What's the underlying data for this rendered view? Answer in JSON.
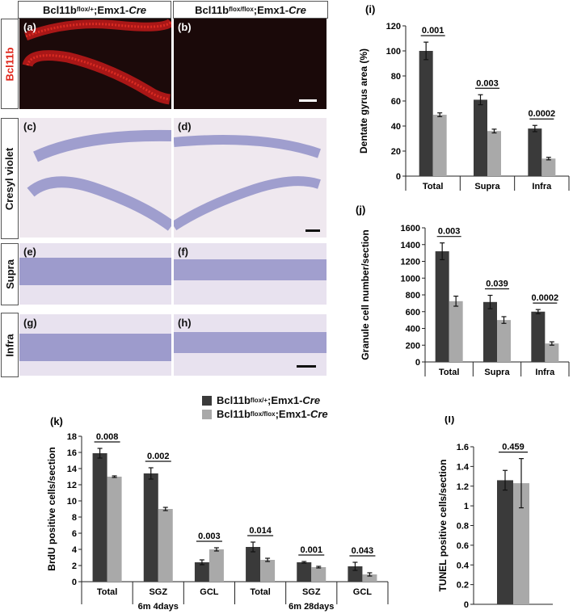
{
  "colors": {
    "dark": "#3a3a3a",
    "light": "#a9a9a9",
    "red_label": "#e0261b"
  },
  "headers": {
    "left": {
      "base": "Bcl11b",
      "sup": "flox/+",
      "mid": ";Emx1-",
      "cre": "Cre"
    },
    "right": {
      "base": "Bcl11b",
      "sup": "flox/flox",
      "mid": ";Emx1-",
      "cre": "Cre"
    }
  },
  "row_labels": [
    "Bcl11b",
    "Cresyl violet",
    "Supra",
    "Infra"
  ],
  "panel_labels": [
    "(a)",
    "(b)",
    "(c)",
    "(d)",
    "(e)",
    "(f)",
    "(g)",
    "(h)"
  ],
  "legend": [
    {
      "base": "Bcl11b",
      "sup": "flox/+",
      "mid": ";Emx1-",
      "cre": "Cre",
      "color": "#3a3a3a"
    },
    {
      "base": "Bcl11b",
      "sup": "flox/flox",
      "mid": ";Emx1-",
      "cre": "Cre",
      "color": "#a9a9a9"
    }
  ],
  "chart_data": [
    {
      "id": "i",
      "panel_label": "(i)",
      "type": "bar",
      "ylabel": "Dentate gyrus area (%)",
      "ylim": [
        0,
        120
      ],
      "yticks": [
        0,
        20,
        40,
        60,
        80,
        100,
        120
      ],
      "categories": [
        "Total",
        "Supra",
        "Infra"
      ],
      "series": [
        {
          "values": [
            100,
            61,
            38
          ],
          "errors": [
            7,
            4,
            2.5
          ]
        },
        {
          "values": [
            49,
            36,
            14
          ],
          "errors": [
            1.5,
            1.5,
            1
          ]
        }
      ],
      "pvalues": [
        "0.001",
        "0.003",
        "0.0002"
      ],
      "grid": false
    },
    {
      "id": "j",
      "panel_label": "(j)",
      "type": "bar",
      "ylabel": "Granule cell number/section",
      "ylim": [
        0,
        1600
      ],
      "yticks": [
        0,
        200,
        400,
        600,
        800,
        1000,
        1200,
        1400,
        1600
      ],
      "categories": [
        "Total",
        "Supra",
        "Infra"
      ],
      "series": [
        {
          "values": [
            1320,
            715,
            600
          ],
          "errors": [
            100,
            80,
            25
          ]
        },
        {
          "values": [
            725,
            500,
            220
          ],
          "errors": [
            60,
            40,
            20
          ]
        }
      ],
      "pvalues": [
        "0.003",
        "0.039",
        "0.0002"
      ],
      "grid": false
    },
    {
      "id": "k",
      "panel_label": "(k)",
      "type": "bar",
      "ylabel": "BrdU positive cells/section",
      "ylim": [
        0,
        18
      ],
      "yticks": [
        0,
        2,
        4,
        6,
        8,
        10,
        12,
        14,
        16,
        18
      ],
      "categories": [
        "Total",
        "SGZ",
        "GCL",
        "Total",
        "SGZ",
        "GCL"
      ],
      "groups": [
        "6m 4days",
        "6m 28days"
      ],
      "series": [
        {
          "values": [
            15.9,
            13.4,
            2.4,
            4.3,
            2.4,
            1.9
          ],
          "errors": [
            0.6,
            0.7,
            0.3,
            0.6,
            0.1,
            0.5
          ]
        },
        {
          "values": [
            13.0,
            9.0,
            4.0,
            2.7,
            1.8,
            0.9
          ],
          "errors": [
            0.1,
            0.2,
            0.2,
            0.2,
            0.1,
            0.2
          ]
        }
      ],
      "pvalues": [
        "0.008",
        "0.002",
        "0.003",
        "0.014",
        "0.001",
        "0.043"
      ],
      "grid": false
    },
    {
      "id": "l",
      "panel_label": "(l)",
      "type": "bar",
      "ylabel": "TUNEL positive cells/section",
      "ylim": [
        0,
        1.6
      ],
      "yticks": [
        0,
        0.2,
        0.4,
        0.6,
        0.8,
        1,
        1.2,
        1.4,
        1.6
      ],
      "categories": [
        ""
      ],
      "series": [
        {
          "values": [
            1.26
          ],
          "errors": [
            0.1
          ]
        },
        {
          "values": [
            1.23
          ],
          "errors": [
            0.25
          ]
        }
      ],
      "pvalues": [
        "0.459"
      ],
      "grid": false
    }
  ]
}
